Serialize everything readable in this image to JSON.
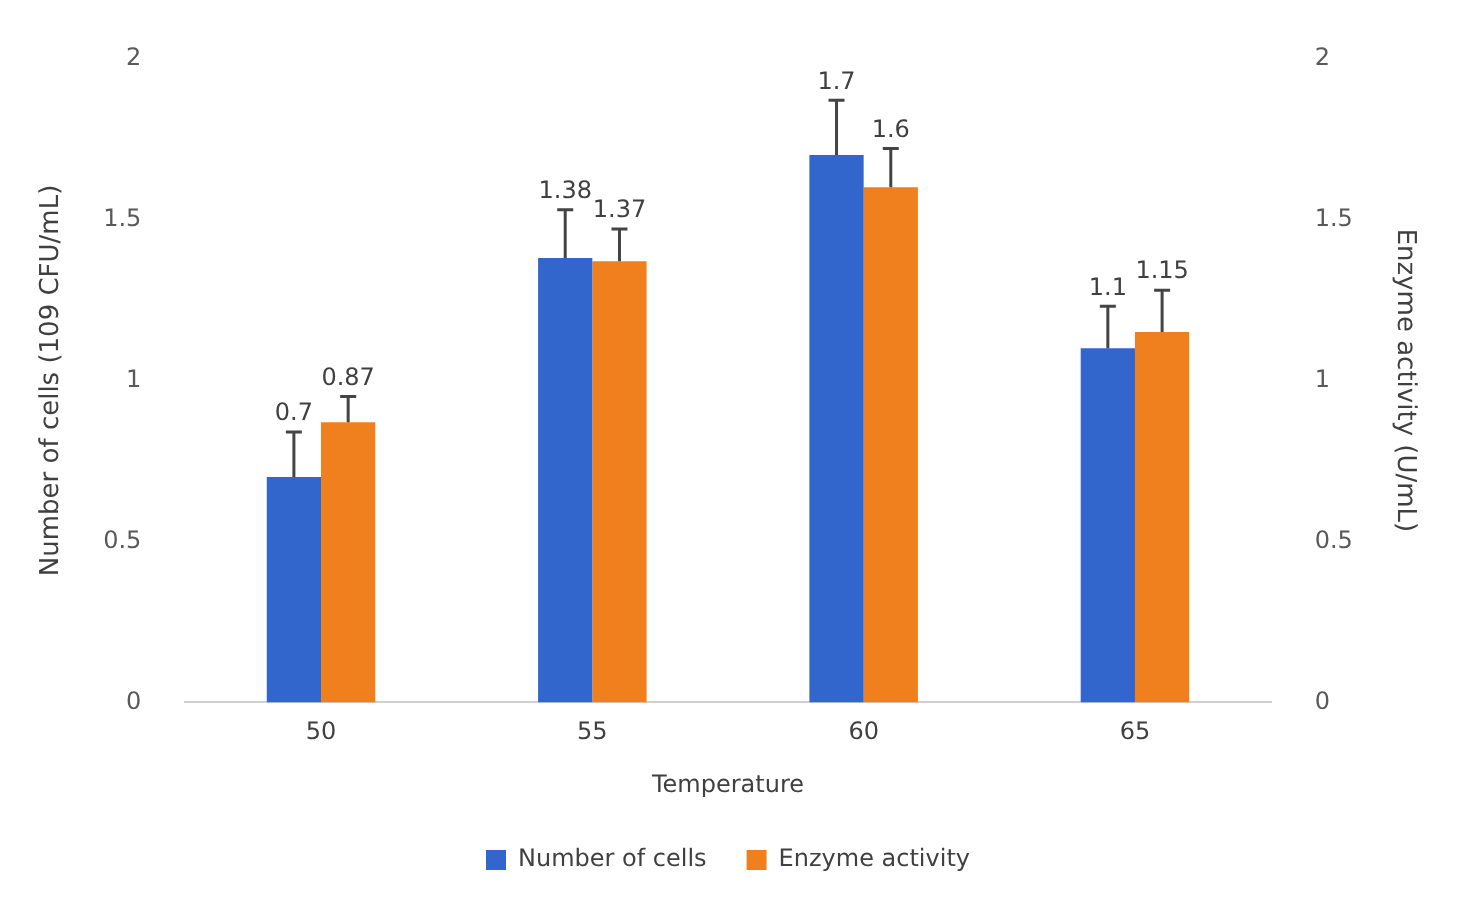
{
  "chart_data": {
    "type": "bar",
    "xlabel": "Temperature",
    "ylabel": "Number of cells (109 CFU/mL)",
    "y2label": "Enzyme activity (U/mL)",
    "categories": [
      "50",
      "55",
      "60",
      "65"
    ],
    "series": [
      {
        "name": "Number of cells",
        "color": "#3366cc",
        "values": [
          0.7,
          1.38,
          1.7,
          1.1
        ],
        "errors": [
          [
            0.7,
            0.84
          ],
          [
            1.38,
            1.53
          ],
          [
            1.7,
            1.87
          ],
          [
            1.1,
            1.23
          ]
        ]
      },
      {
        "name": "Enzyme activity",
        "color": "#f07f1e",
        "axis": "y2",
        "values": [
          0.87,
          1.37,
          1.6,
          1.15
        ],
        "errors": [
          [
            0.87,
            0.95
          ],
          [
            1.37,
            1.47
          ],
          [
            1.6,
            1.72
          ],
          [
            1.15,
            1.28
          ]
        ]
      }
    ],
    "ylim": [
      0,
      2
    ],
    "yticks": [
      0,
      0.5,
      1,
      1.5,
      2
    ],
    "y2lim": [
      0,
      2
    ],
    "y2ticks": [
      0,
      0.5,
      1,
      1.5,
      2
    ],
    "data_labels": true,
    "grid": false,
    "legend": "bottom"
  }
}
